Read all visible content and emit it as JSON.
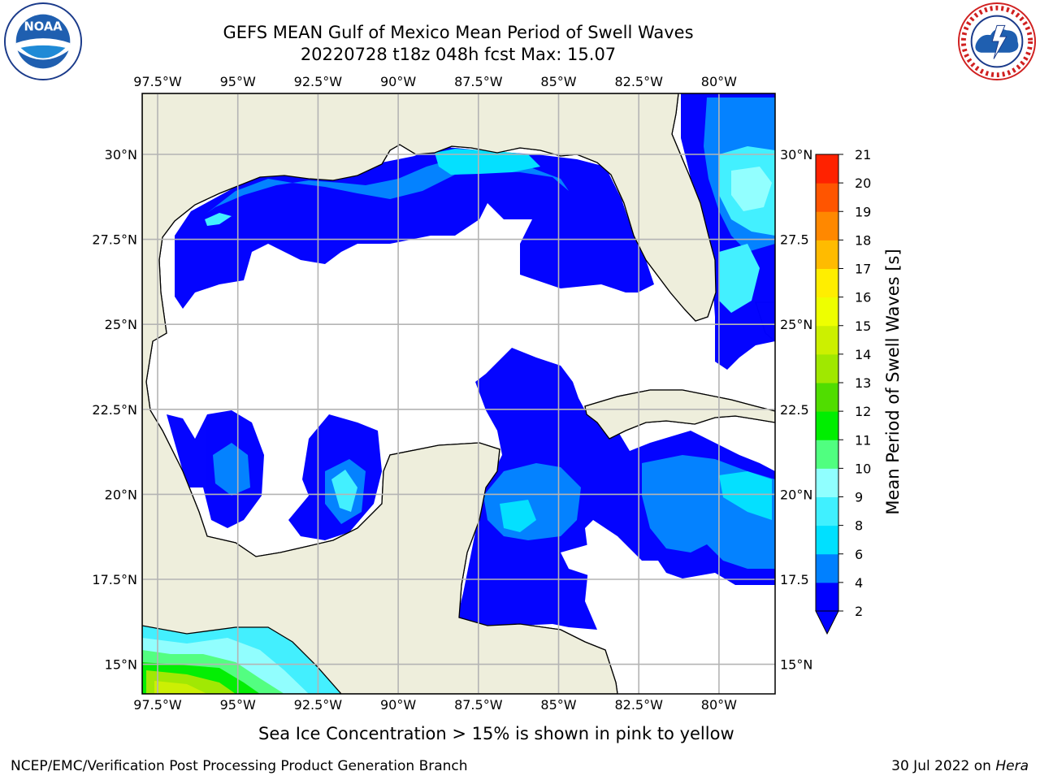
{
  "title": {
    "line1": "GEFS MEAN Gulf of Mexico Mean Period of Swell Waves",
    "line2": "20220728 t18z 048h fcst   Max: 15.07"
  },
  "map": {
    "lon_labels": [
      "97.5°W",
      "95°W",
      "92.5°W",
      "90°W",
      "87.5°W",
      "85°W",
      "82.5°W",
      "80°W"
    ],
    "lat_labels": [
      "30°N",
      "27.5°N",
      "25°N",
      "22.5°N",
      "20°N",
      "17.5°N",
      "15°N"
    ],
    "lat_labels_right": [
      "30°N",
      "27.5",
      "25°N",
      "22.5",
      "20°N",
      "17.5",
      "15°N"
    ],
    "colors": {
      "land": "#eeeedc",
      "ocean": "#ffffff",
      "grid": "#b4b4b4",
      "coast": "#000000"
    }
  },
  "colorbar": {
    "label": "Mean Period of Swell Waves [s]",
    "ticks": [
      "2",
      "4",
      "6",
      "8",
      "9",
      "10",
      "11",
      "12",
      "13",
      "14",
      "15",
      "16",
      "17",
      "18",
      "19",
      "20",
      "21"
    ],
    "colors": [
      "#0000ff",
      "#0080ff",
      "#00e0ff",
      "#40f0ff",
      "#90ffff",
      "#50ff80",
      "#00ee00",
      "#50dd00",
      "#a0e800",
      "#ccf000",
      "#eeff00",
      "#ffee00",
      "#ffbb00",
      "#ff8800",
      "#ff5500",
      "#ff2200"
    ]
  },
  "sea_ice_note": "Sea Ice Concentration > 15% is shown in pink to yellow",
  "footer": {
    "left": "NCEP/EMC/Verification Post Processing Product Generation Branch",
    "right_date": "30 Jul 2022 on",
    "right_host": "Hera"
  },
  "icons": {
    "left_logo": "noaa-logo-icon",
    "right_logo": "nws-logo-icon"
  }
}
